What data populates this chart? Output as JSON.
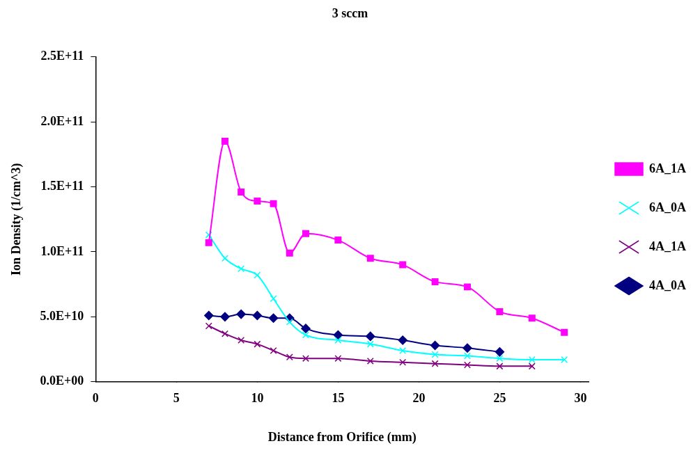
{
  "chart_data": {
    "type": "line",
    "title": "3 sccm",
    "xlabel": "Distance from Orifice (mm)",
    "ylabel": "Ion Density (1/cm^3)",
    "x": [
      7,
      8,
      9,
      10,
      11,
      12,
      13,
      15,
      17,
      19,
      21,
      23,
      25,
      27,
      29
    ],
    "series": [
      {
        "name": "6A_1A",
        "color": "#ff00ff",
        "marker": "square",
        "values": [
          107000000000.0,
          185000000000.0,
          146000000000.0,
          139000000000.0,
          137000000000.0,
          99000000000.0,
          114000000000.0,
          109000000000.0,
          95000000000.0,
          90000000000.0,
          77000000000.0,
          73000000000.0,
          54000000000.0,
          49000000000.0,
          38000000000.0
        ]
      },
      {
        "name": "6A_0A",
        "color": "#00ffff",
        "marker": "cross",
        "values": [
          113000000000.0,
          95000000000.0,
          87000000000.0,
          82000000000.0,
          64000000000.0,
          46000000000.0,
          36000000000.0,
          32000000000.0,
          29000000000.0,
          24000000000.0,
          21000000000.0,
          20000000000.0,
          18000000000.0,
          17000000000.0,
          17000000000.0
        ]
      },
      {
        "name": "4A_1A",
        "color": "#800080",
        "marker": "cross",
        "values": [
          43000000000.0,
          37000000000.0,
          32000000000.0,
          29000000000.0,
          24000000000.0,
          19000000000.0,
          18000000000.0,
          18000000000.0,
          16000000000.0,
          15000000000.0,
          14000000000.0,
          13000000000.0,
          12000000000.0,
          12000000000.0,
          null
        ]
      },
      {
        "name": "4A_0A",
        "color": "#000080",
        "marker": "diamond",
        "values": [
          51000000000.0,
          50000000000.0,
          52000000000.0,
          51000000000.0,
          49000000000.0,
          49000000000.0,
          41000000000.0,
          36000000000.0,
          35000000000.0,
          32000000000.0,
          28000000000.0,
          26000000000.0,
          23000000000.0,
          null,
          null
        ]
      }
    ],
    "xlim": [
      0,
      30.5
    ],
    "xticks": [
      0,
      5,
      10,
      15,
      20,
      25,
      30
    ],
    "ylim": [
      0,
      250000000000.0
    ],
    "yticks": [
      {
        "value": 0,
        "label": "0.0E+00"
      },
      {
        "value": 50000000000.0,
        "label": "5.0E+10"
      },
      {
        "value": 100000000000.0,
        "label": "1.0E+11"
      },
      {
        "value": 150000000000.0,
        "label": "1.5E+11"
      },
      {
        "value": 200000000000.0,
        "label": "2.0E+11"
      },
      {
        "value": 250000000000.0,
        "label": "2.5E+11"
      }
    ],
    "grid": false,
    "legend": "right"
  }
}
